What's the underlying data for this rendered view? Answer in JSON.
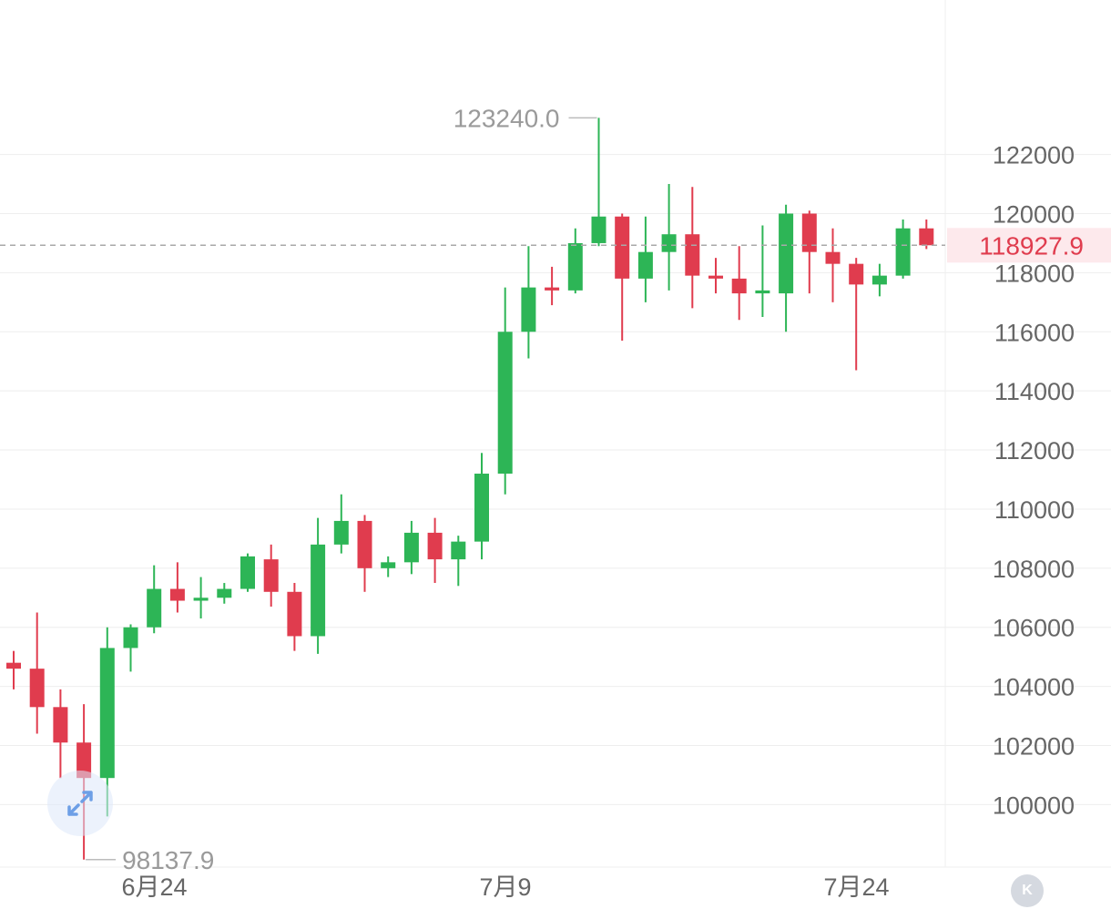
{
  "colors": {
    "up": "#2db556",
    "down": "#e03c4e",
    "grid": "#eeeeee",
    "axis_text": "#666666",
    "annotation_text": "#9a9a9a",
    "current_price": "#e03c4e",
    "current_price_bg": "#fde9ec"
  },
  "controls": {
    "expand_icon": "expand-arrows-icon",
    "reset_icon": "chevron-left-bar-icon",
    "reset_glyph": "K"
  },
  "chart_data": {
    "type": "candlestick",
    "ylim": [
      97500,
      124500
    ],
    "y_ticks": [
      100000,
      102000,
      104000,
      106000,
      108000,
      110000,
      112000,
      114000,
      116000,
      118000,
      120000,
      122000
    ],
    "y_tick_labels": [
      "100000",
      "102000",
      "104000",
      "106000",
      "108000",
      "110000",
      "112000",
      "114000",
      "116000",
      "118000",
      "120000",
      "122000"
    ],
    "x_tick_labels": [
      {
        "label": "6月24",
        "index": 5
      },
      {
        "label": "7月9",
        "index": 20
      },
      {
        "label": "7月24",
        "index": 35
      }
    ],
    "current_price": 118927.9,
    "current_price_label": "118927.9",
    "high_annotation": {
      "value": 123240.0,
      "label": "123240.0",
      "index": 25
    },
    "low_annotation": {
      "value": 98137.9,
      "label": "98137.9",
      "index": 3
    },
    "candles": [
      {
        "o": 104800,
        "h": 105200,
        "l": 103900,
        "c": 104600
      },
      {
        "o": 104600,
        "h": 106500,
        "l": 102400,
        "c": 103300
      },
      {
        "o": 103300,
        "h": 103900,
        "l": 100900,
        "c": 102100
      },
      {
        "o": 102100,
        "h": 103400,
        "l": 98137.9,
        "c": 100900
      },
      {
        "o": 100900,
        "h": 106000,
        "l": 99600,
        "c": 105300
      },
      {
        "o": 105300,
        "h": 106100,
        "l": 104500,
        "c": 106000
      },
      {
        "o": 106000,
        "h": 108100,
        "l": 105800,
        "c": 107300
      },
      {
        "o": 107300,
        "h": 108200,
        "l": 106500,
        "c": 106900
      },
      {
        "o": 106900,
        "h": 107700,
        "l": 106300,
        "c": 107000
      },
      {
        "o": 107000,
        "h": 107500,
        "l": 106800,
        "c": 107300
      },
      {
        "o": 107300,
        "h": 108500,
        "l": 107200,
        "c": 108400
      },
      {
        "o": 108300,
        "h": 108800,
        "l": 106700,
        "c": 107200
      },
      {
        "o": 107200,
        "h": 107500,
        "l": 105200,
        "c": 105700
      },
      {
        "o": 105700,
        "h": 109700,
        "l": 105100,
        "c": 108800
      },
      {
        "o": 108800,
        "h": 110500,
        "l": 108500,
        "c": 109600
      },
      {
        "o": 109600,
        "h": 109800,
        "l": 107200,
        "c": 108000
      },
      {
        "o": 108000,
        "h": 108400,
        "l": 107700,
        "c": 108200
      },
      {
        "o": 108200,
        "h": 109600,
        "l": 107800,
        "c": 109200
      },
      {
        "o": 109200,
        "h": 109700,
        "l": 107500,
        "c": 108300
      },
      {
        "o": 108300,
        "h": 109100,
        "l": 107400,
        "c": 108900
      },
      {
        "o": 108900,
        "h": 111900,
        "l": 108300,
        "c": 111200
      },
      {
        "o": 111200,
        "h": 117500,
        "l": 110500,
        "c": 116000
      },
      {
        "o": 116000,
        "h": 118900,
        "l": 115100,
        "c": 117500
      },
      {
        "o": 117500,
        "h": 118200,
        "l": 116900,
        "c": 117400
      },
      {
        "o": 117400,
        "h": 119500,
        "l": 117300,
        "c": 119000
      },
      {
        "o": 119000,
        "h": 123240,
        "l": 118900,
        "c": 119900
      },
      {
        "o": 119900,
        "h": 120000,
        "l": 115700,
        "c": 117800
      },
      {
        "o": 117800,
        "h": 119900,
        "l": 117000,
        "c": 118700
      },
      {
        "o": 118700,
        "h": 121000,
        "l": 117400,
        "c": 119300
      },
      {
        "o": 119300,
        "h": 120900,
        "l": 116800,
        "c": 117900
      },
      {
        "o": 117900,
        "h": 118500,
        "l": 117300,
        "c": 117800
      },
      {
        "o": 117800,
        "h": 118900,
        "l": 116400,
        "c": 117300
      },
      {
        "o": 117300,
        "h": 119600,
        "l": 116500,
        "c": 117400
      },
      {
        "o": 117300,
        "h": 120300,
        "l": 116000,
        "c": 120000
      },
      {
        "o": 120000,
        "h": 120100,
        "l": 117300,
        "c": 118700
      },
      {
        "o": 118700,
        "h": 119500,
        "l": 117000,
        "c": 118300
      },
      {
        "o": 118300,
        "h": 118500,
        "l": 114700,
        "c": 117600
      },
      {
        "o": 117600,
        "h": 118300,
        "l": 117200,
        "c": 117900
      },
      {
        "o": 117900,
        "h": 119800,
        "l": 117800,
        "c": 119500
      },
      {
        "o": 119500,
        "h": 119800,
        "l": 118800,
        "c": 118927.9
      }
    ]
  }
}
